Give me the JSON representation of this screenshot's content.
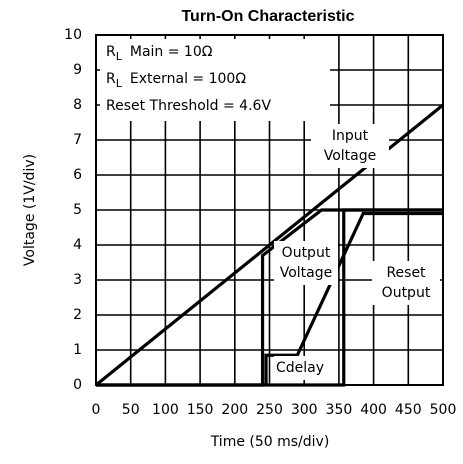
{
  "chart_data": {
    "type": "line",
    "title": "Turn-On Characteristic",
    "x_label": "Time (50 ms/div)",
    "y_label": "Voltage (1V/div)",
    "xlim": [
      0,
      500
    ],
    "xticks": [
      0,
      50,
      100,
      150,
      200,
      250,
      300,
      350,
      400,
      450,
      500
    ],
    "ylim": [
      0,
      10
    ],
    "yticks": [
      0,
      1,
      2,
      3,
      4,
      5,
      6,
      7,
      8,
      9,
      10
    ],
    "grid": true,
    "annotations": [
      {
        "label": "R",
        "subscript": "L",
        "text": "Main = 10Ω"
      },
      {
        "label": "R",
        "subscript": "L",
        "text": "External = 100Ω"
      },
      {
        "label": "Reset Threshold = 4.6V"
      }
    ],
    "series": [
      {
        "name": "Input Voltage",
        "color": "#000000",
        "x": [
          0,
          500
        ],
        "values": [
          0,
          8
        ]
      },
      {
        "name": "Output Voltage",
        "color": "#000000",
        "x": [
          0,
          240,
          240,
          325,
          500
        ],
        "values": [
          0,
          0,
          3.7,
          5,
          5
        ]
      },
      {
        "name": "Reset Output",
        "color": "#000000",
        "x": [
          0,
          357,
          357,
          500
        ],
        "values": [
          0,
          0,
          5,
          5
        ]
      },
      {
        "name": "Cdelay",
        "color": "#000000",
        "x": [
          245,
          245,
          290,
          385,
          500
        ],
        "values": [
          0,
          0.85,
          0.85,
          4.9,
          4.9
        ]
      }
    ]
  }
}
